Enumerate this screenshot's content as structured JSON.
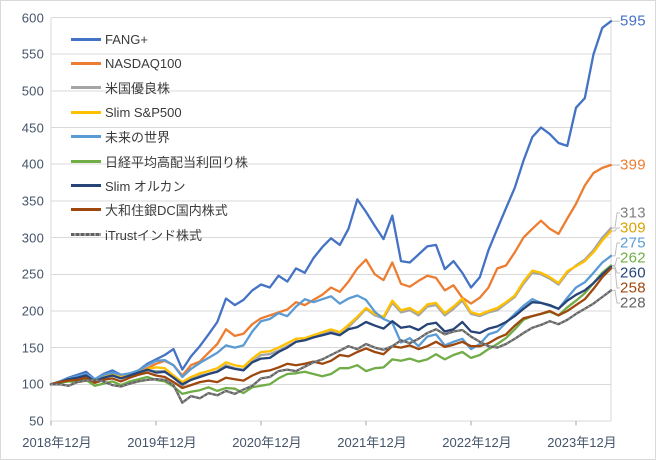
{
  "chart_data": {
    "type": "line",
    "title": "",
    "xlabel": "",
    "ylabel": "",
    "ylim": [
      50,
      600
    ],
    "grid": true,
    "legend_position": "top-left-inside",
    "y_ticks": [
      600,
      550,
      500,
      450,
      400,
      350,
      300,
      250,
      200,
      150,
      100,
      50
    ],
    "x_ticks": [
      {
        "label": "2018年12月",
        "index": 0
      },
      {
        "label": "2019年12月",
        "index": 12
      },
      {
        "label": "2020年12月",
        "index": 24
      },
      {
        "label": "2021年12月",
        "index": 36
      },
      {
        "label": "2022年12月",
        "index": 48
      },
      {
        "label": "2023年12月",
        "index": 60
      }
    ],
    "x_note": "monthly points from 2018-12 to 2024-04, indexed to 100 at start",
    "colors": {
      "grid": "#d9d9d9",
      "axis": "#bfbfbf",
      "tick": "#a6a6a6",
      "leader": "#bfbfbf"
    },
    "series": [
      {
        "name": "FANG+",
        "color": "#4472C4",
        "end_label": "595",
        "values": [
          100,
          104,
          109,
          113,
          117,
          107,
          114,
          119,
          113,
          111,
          119,
          128,
          134,
          140,
          148,
          120,
          138,
          152,
          168,
          185,
          217,
          208,
          215,
          228,
          236,
          232,
          248,
          240,
          258,
          252,
          272,
          287,
          299,
          290,
          312,
          352,
          335,
          316,
          298,
          330,
          268,
          266,
          277,
          288,
          290,
          257,
          268,
          252,
          232,
          246,
          283,
          312,
          340,
          368,
          405,
          437,
          450,
          441,
          429,
          425,
          477,
          490,
          550,
          586,
          595
        ]
      },
      {
        "name": "NASDAQ100",
        "color": "#ED7D31",
        "end_label": "399",
        "values": [
          100,
          103,
          106,
          110,
          114,
          105,
          111,
          115,
          112,
          112,
          117,
          122,
          128,
          132,
          126,
          112,
          126,
          131,
          143,
          155,
          175,
          166,
          169,
          182,
          190,
          194,
          198,
          202,
          212,
          208,
          215,
          222,
          232,
          226,
          240,
          258,
          270,
          250,
          242,
          266,
          237,
          233,
          241,
          248,
          245,
          228,
          235,
          218,
          210,
          218,
          232,
          258,
          262,
          280,
          300,
          312,
          323,
          312,
          305,
          326,
          346,
          371,
          388,
          395,
          399
        ]
      },
      {
        "name": "米国優良株",
        "color": "#A5A5A5",
        "end_label": "313",
        "label_color": "#7F7F7F",
        "values": [
          100,
          103,
          106,
          108,
          111,
          103,
          109,
          112,
          109,
          112,
          115,
          119,
          118,
          118,
          109,
          98,
          107,
          112,
          114,
          118,
          126,
          122,
          120,
          131,
          140,
          141,
          146,
          152,
          158,
          160,
          164,
          168,
          172,
          168,
          178,
          190,
          203,
          194,
          190,
          211,
          198,
          201,
          194,
          206,
          208,
          194,
          203,
          214,
          196,
          193,
          198,
          201,
          210,
          219,
          237,
          252,
          250,
          244,
          236,
          252,
          262,
          270,
          283,
          300,
          313
        ]
      },
      {
        "name": "Slim S&P500",
        "color": "#FFC000",
        "end_label": "309",
        "label_color": "#D9A300",
        "values": [
          100,
          104,
          107,
          109,
          112,
          104,
          110,
          113,
          110,
          113,
          116,
          121,
          123,
          122,
          112,
          103,
          110,
          115,
          118,
          122,
          130,
          126,
          124,
          135,
          144,
          145,
          150,
          156,
          162,
          163,
          167,
          171,
          175,
          171,
          181,
          192,
          204,
          196,
          192,
          214,
          201,
          204,
          197,
          209,
          211,
          197,
          206,
          217,
          198,
          195,
          200,
          204,
          212,
          221,
          240,
          255,
          252,
          246,
          238,
          254,
          261,
          268,
          280,
          296,
          309
        ]
      },
      {
        "name": "未来の世界",
        "color": "#5B9BD5",
        "end_label": "275",
        "values": [
          100,
          104,
          108,
          111,
          114,
          107,
          113,
          116,
          113,
          115,
          119,
          126,
          132,
          133,
          126,
          110,
          121,
          129,
          136,
          143,
          153,
          150,
          153,
          172,
          186,
          189,
          197,
          193,
          206,
          216,
          212,
          216,
          220,
          210,
          217,
          221,
          215,
          199,
          189,
          184,
          157,
          163,
          152,
          165,
          168,
          153,
          158,
          162,
          148,
          155,
          168,
          172,
          184,
          196,
          207,
          216,
          211,
          207,
          203,
          218,
          232,
          239,
          252,
          266,
          275
        ]
      },
      {
        "name": "日経平均高配当利回り株",
        "color": "#70AD47",
        "end_label": "262",
        "values": [
          100,
          102,
          104,
          103,
          106,
          98,
          101,
          104,
          99,
          104,
          107,
          110,
          106,
          104,
          97,
          87,
          90,
          92,
          96,
          91,
          95,
          94,
          88,
          96,
          98,
          100,
          108,
          114,
          115,
          117,
          114,
          111,
          114,
          122,
          122,
          126,
          118,
          122,
          123,
          134,
          132,
          135,
          131,
          134,
          141,
          134,
          140,
          144,
          136,
          140,
          148,
          155,
          163,
          175,
          188,
          193,
          196,
          199,
          194,
          205,
          214,
          224,
          238,
          252,
          262
        ]
      },
      {
        "name": "Slim オルカン",
        "color": "#264478",
        "end_label": "260",
        "values": [
          100,
          103,
          107,
          109,
          112,
          104,
          109,
          112,
          108,
          112,
          116,
          120,
          116,
          117,
          109,
          100,
          106,
          110,
          114,
          117,
          124,
          121,
          119,
          130,
          135,
          136,
          144,
          150,
          158,
          160,
          164,
          167,
          170,
          167,
          175,
          178,
          185,
          180,
          176,
          186,
          177,
          179,
          174,
          182,
          184,
          172,
          175,
          185,
          172,
          170,
          176,
          179,
          185,
          193,
          203,
          212,
          211,
          208,
          203,
          214,
          222,
          228,
          238,
          250,
          260
        ]
      },
      {
        "name": "大和住銀DC国内株式",
        "color": "#9E480E",
        "end_label": "258",
        "values": [
          100,
          103,
          105,
          106,
          109,
          102,
          106,
          108,
          104,
          109,
          113,
          116,
          112,
          110,
          103,
          95,
          99,
          103,
          105,
          103,
          109,
          107,
          105,
          112,
          117,
          119,
          123,
          128,
          126,
          128,
          131,
          128,
          132,
          140,
          138,
          144,
          149,
          144,
          141,
          152,
          150,
          153,
          148,
          152,
          158,
          151,
          154,
          158,
          152,
          152,
          156,
          163,
          168,
          180,
          190,
          193,
          196,
          200,
          194,
          200,
          208,
          216,
          230,
          246,
          258
        ]
      },
      {
        "name": "iTrustインド株式",
        "color": "#636363",
        "end_label": "228",
        "textured": true,
        "values": [
          100,
          100,
          98,
          103,
          105,
          106,
          104,
          99,
          97,
          101,
          104,
          106,
          107,
          106,
          99,
          75,
          84,
          81,
          88,
          85,
          91,
          87,
          93,
          98,
          108,
          110,
          118,
          120,
          118,
          124,
          130,
          134,
          140,
          146,
          152,
          148,
          155,
          150,
          147,
          152,
          160,
          156,
          162,
          170,
          175,
          168,
          172,
          174,
          165,
          158,
          152,
          150,
          155,
          162,
          170,
          177,
          181,
          186,
          182,
          188,
          196,
          203,
          210,
          219,
          228
        ]
      }
    ]
  }
}
